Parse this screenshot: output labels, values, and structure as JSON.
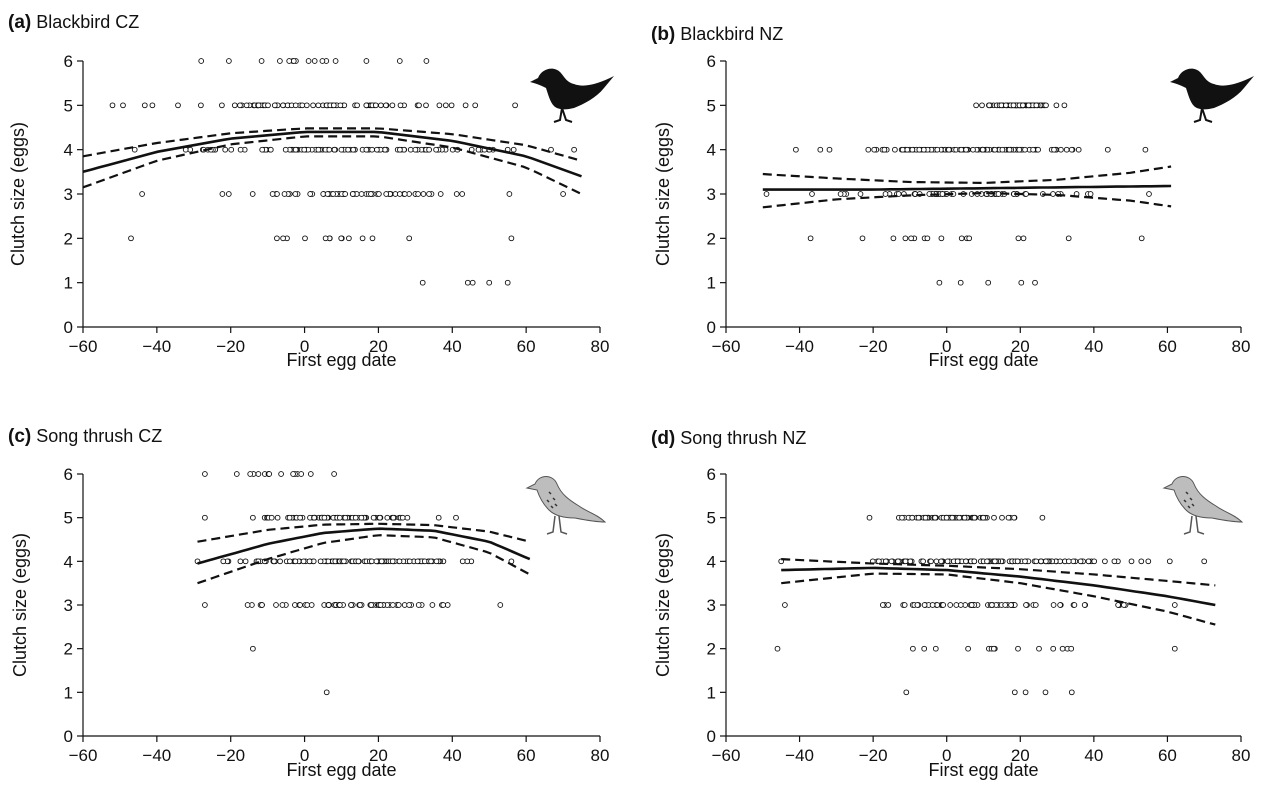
{
  "chart_data": [
    {
      "type": "scatter",
      "panel_letter": "(a)",
      "title": "Blackbird CZ",
      "xlabel": "First egg date",
      "ylabel": "Clutch size (eggs)",
      "xlim": [
        -60,
        80
      ],
      "ylim": [
        0,
        6
      ],
      "xticks": [
        "−60",
        "−40",
        "−20",
        "0",
        "20",
        "40",
        "60",
        "80"
      ],
      "yticks": [
        "0",
        "1",
        "2",
        "3",
        "4",
        "5",
        "6"
      ],
      "grid": false,
      "illustration": "blackbird-silhouette",
      "x_range_by_clutch": {
        "1": [
          32,
          55
        ],
        "2": [
          -47,
          56
        ],
        "3": [
          -44,
          70
        ],
        "4": [
          -46,
          73
        ],
        "5": [
          -52,
          57
        ],
        "6": [
          -28,
          33
        ]
      },
      "fit": {
        "x": [
          -60,
          -40,
          -20,
          0,
          20,
          40,
          60,
          75
        ],
        "y": [
          3.5,
          3.95,
          4.25,
          4.4,
          4.4,
          4.2,
          3.85,
          3.4
        ]
      },
      "ci_upper": {
        "x": [
          -60,
          -40,
          -20,
          0,
          20,
          40,
          60,
          75
        ],
        "y": [
          3.85,
          4.15,
          4.37,
          4.48,
          4.48,
          4.35,
          4.1,
          3.75
        ]
      },
      "ci_lower": {
        "x": [
          -60,
          -40,
          -20,
          0,
          20,
          40,
          60,
          75
        ],
        "y": [
          3.15,
          3.75,
          4.12,
          4.3,
          4.3,
          4.05,
          3.6,
          3.0
        ]
      }
    },
    {
      "type": "scatter",
      "panel_letter": "(b)",
      "title": "Blackbird NZ",
      "xlabel": "First egg date",
      "ylabel": "Clutch size (eggs)",
      "xlim": [
        -60,
        80
      ],
      "ylim": [
        0,
        6
      ],
      "xticks": [
        "−60",
        "−40",
        "−20",
        "0",
        "20",
        "40",
        "60",
        "80"
      ],
      "yticks": [
        "0",
        "1",
        "2",
        "3",
        "4",
        "5",
        "6"
      ],
      "grid": false,
      "illustration": "blackbird-silhouette",
      "x_range_by_clutch": {
        "1": [
          -2,
          24
        ],
        "2": [
          -37,
          53
        ],
        "3": [
          -49,
          55
        ],
        "4": [
          -41,
          54
        ],
        "5": [
          8,
          32
        ]
      },
      "fit": {
        "x": [
          -50,
          -20,
          0,
          20,
          40,
          61
        ],
        "y": [
          3.1,
          3.1,
          3.12,
          3.14,
          3.16,
          3.18
        ]
      },
      "ci_upper": {
        "x": [
          -50,
          -30,
          -10,
          10,
          30,
          50,
          61
        ],
        "y": [
          3.45,
          3.35,
          3.27,
          3.25,
          3.32,
          3.48,
          3.62
        ]
      },
      "ci_lower": {
        "x": [
          -50,
          -30,
          -10,
          10,
          30,
          50,
          61
        ],
        "y": [
          2.7,
          2.88,
          2.97,
          3.02,
          2.98,
          2.85,
          2.72
        ]
      }
    },
    {
      "type": "scatter",
      "panel_letter": "(c)",
      "title": "Song thrush CZ",
      "xlabel": "First egg date",
      "ylabel": "Clutch size (eggs)",
      "xlim": [
        -60,
        80
      ],
      "ylim": [
        0,
        6
      ],
      "xticks": [
        "−60",
        "−40",
        "−20",
        "0",
        "20",
        "40",
        "60",
        "80"
      ],
      "yticks": [
        "0",
        "1",
        "2",
        "3",
        "4",
        "5",
        "6"
      ],
      "grid": false,
      "illustration": "song-thrush-drawing",
      "x_range_by_clutch": {
        "1": [
          6,
          6
        ],
        "2": [
          -14,
          -14
        ],
        "3": [
          -27,
          53
        ],
        "4": [
          -29,
          56
        ],
        "5": [
          -27,
          41
        ],
        "6": [
          -27,
          8
        ]
      },
      "fit": {
        "x": [
          -29,
          -10,
          5,
          20,
          35,
          50,
          61
        ],
        "y": [
          3.95,
          4.4,
          4.65,
          4.75,
          4.7,
          4.45,
          4.05
        ]
      },
      "ci_upper": {
        "x": [
          -29,
          -10,
          5,
          20,
          35,
          50,
          61
        ],
        "y": [
          4.45,
          4.72,
          4.84,
          4.86,
          4.83,
          4.68,
          4.45
        ]
      },
      "ci_lower": {
        "x": [
          -29,
          -10,
          5,
          20,
          35,
          50,
          61
        ],
        "y": [
          3.5,
          4.05,
          4.42,
          4.6,
          4.55,
          4.2,
          3.7
        ]
      }
    },
    {
      "type": "scatter",
      "panel_letter": "(d)",
      "title": "Song thrush NZ",
      "xlabel": "First egg date",
      "ylabel": "Clutch size (eggs)",
      "xlim": [
        -60,
        80
      ],
      "ylim": [
        0,
        6
      ],
      "xticks": [
        "−60",
        "−40",
        "−20",
        "0",
        "20",
        "40",
        "60",
        "80"
      ],
      "yticks": [
        "0",
        "1",
        "2",
        "3",
        "4",
        "5",
        "6"
      ],
      "grid": false,
      "illustration": "song-thrush-drawing",
      "x_range_by_clutch": {
        "1": [
          -11,
          34
        ],
        "2": [
          -46,
          62
        ],
        "3": [
          -44,
          62
        ],
        "4": [
          -45,
          70
        ],
        "5": [
          -21,
          26
        ]
      },
      "fit": {
        "x": [
          -45,
          -20,
          0,
          20,
          40,
          60,
          73
        ],
        "y": [
          3.8,
          3.85,
          3.8,
          3.65,
          3.45,
          3.2,
          3.0
        ]
      },
      "ci_upper": {
        "x": [
          -45,
          -20,
          0,
          20,
          40,
          60,
          73
        ],
        "y": [
          4.05,
          3.95,
          3.9,
          3.82,
          3.7,
          3.55,
          3.45
        ]
      },
      "ci_lower": {
        "x": [
          -45,
          -20,
          0,
          20,
          40,
          60,
          73
        ],
        "y": [
          3.5,
          3.72,
          3.7,
          3.5,
          3.2,
          2.85,
          2.55
        ]
      }
    }
  ]
}
